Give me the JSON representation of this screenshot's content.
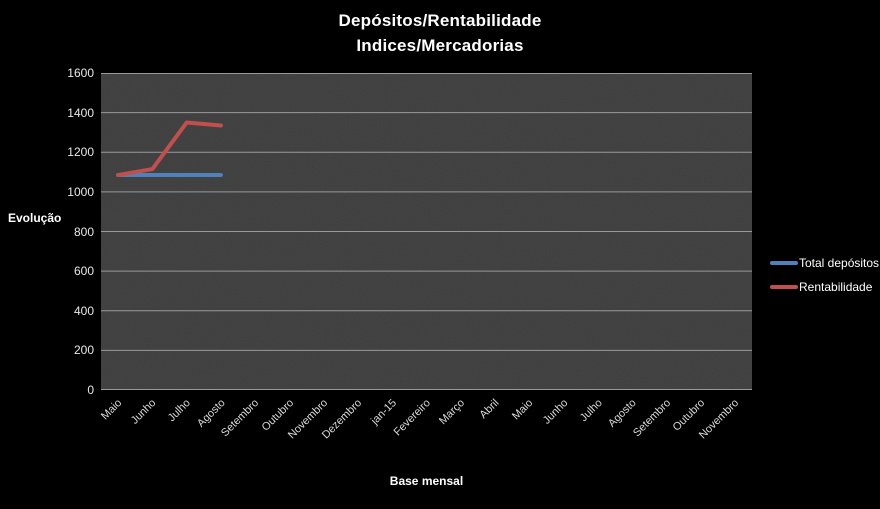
{
  "title": {
    "line1": "Depósitos/Rentabilidade",
    "line2": "Indices/Mercadorias"
  },
  "axes": {
    "y_title": "Evolução",
    "x_title": "Base mensal"
  },
  "legend": {
    "position": "right",
    "items": [
      {
        "label": "Total depósitos",
        "color": "#4f81bd"
      },
      {
        "label": "Rentabilidade",
        "color": "#c0504d"
      }
    ]
  },
  "colors": {
    "page_background": "#000000",
    "plot_background": "#3d3d3d",
    "gridline": "#999999",
    "tick_text": "#d9d9d9",
    "title_text": "#ffffff",
    "series_blue": "#4f81bd",
    "series_red": "#c0504d"
  },
  "chart_data": {
    "type": "line",
    "title": "Depósitos/Rentabilidade Indices/Mercadorias",
    "xlabel": "Base mensal",
    "ylabel": "Evolução",
    "ylim": [
      0,
      1600
    ],
    "ytick_interval": 200,
    "yticks": [
      0,
      200,
      400,
      600,
      800,
      1000,
      1200,
      1400,
      1600
    ],
    "grid": true,
    "legend_position": "right",
    "categories": [
      "Maio",
      "Junho",
      "Julho",
      "Agosto",
      "Setembro",
      "Outubro",
      "Novembro",
      "Dezembro",
      "jan-15",
      "Fevereiro",
      "Março",
      "Abril",
      "Maio",
      "Junho",
      "Julho",
      "Agosto",
      "Setembro",
      "Outubro",
      "Novembro"
    ],
    "series": [
      {
        "name": "Total depósitos",
        "color": "#4f81bd",
        "values": [
          1085,
          1085,
          1085,
          1085,
          null,
          null,
          null,
          null,
          null,
          null,
          null,
          null,
          null,
          null,
          null,
          null,
          null,
          null,
          null
        ]
      },
      {
        "name": "Rentabilidade",
        "color": "#c0504d",
        "values": [
          1085,
          1115,
          1350,
          1335,
          null,
          null,
          null,
          null,
          null,
          null,
          null,
          null,
          null,
          null,
          null,
          null,
          null,
          null,
          null
        ]
      }
    ]
  }
}
